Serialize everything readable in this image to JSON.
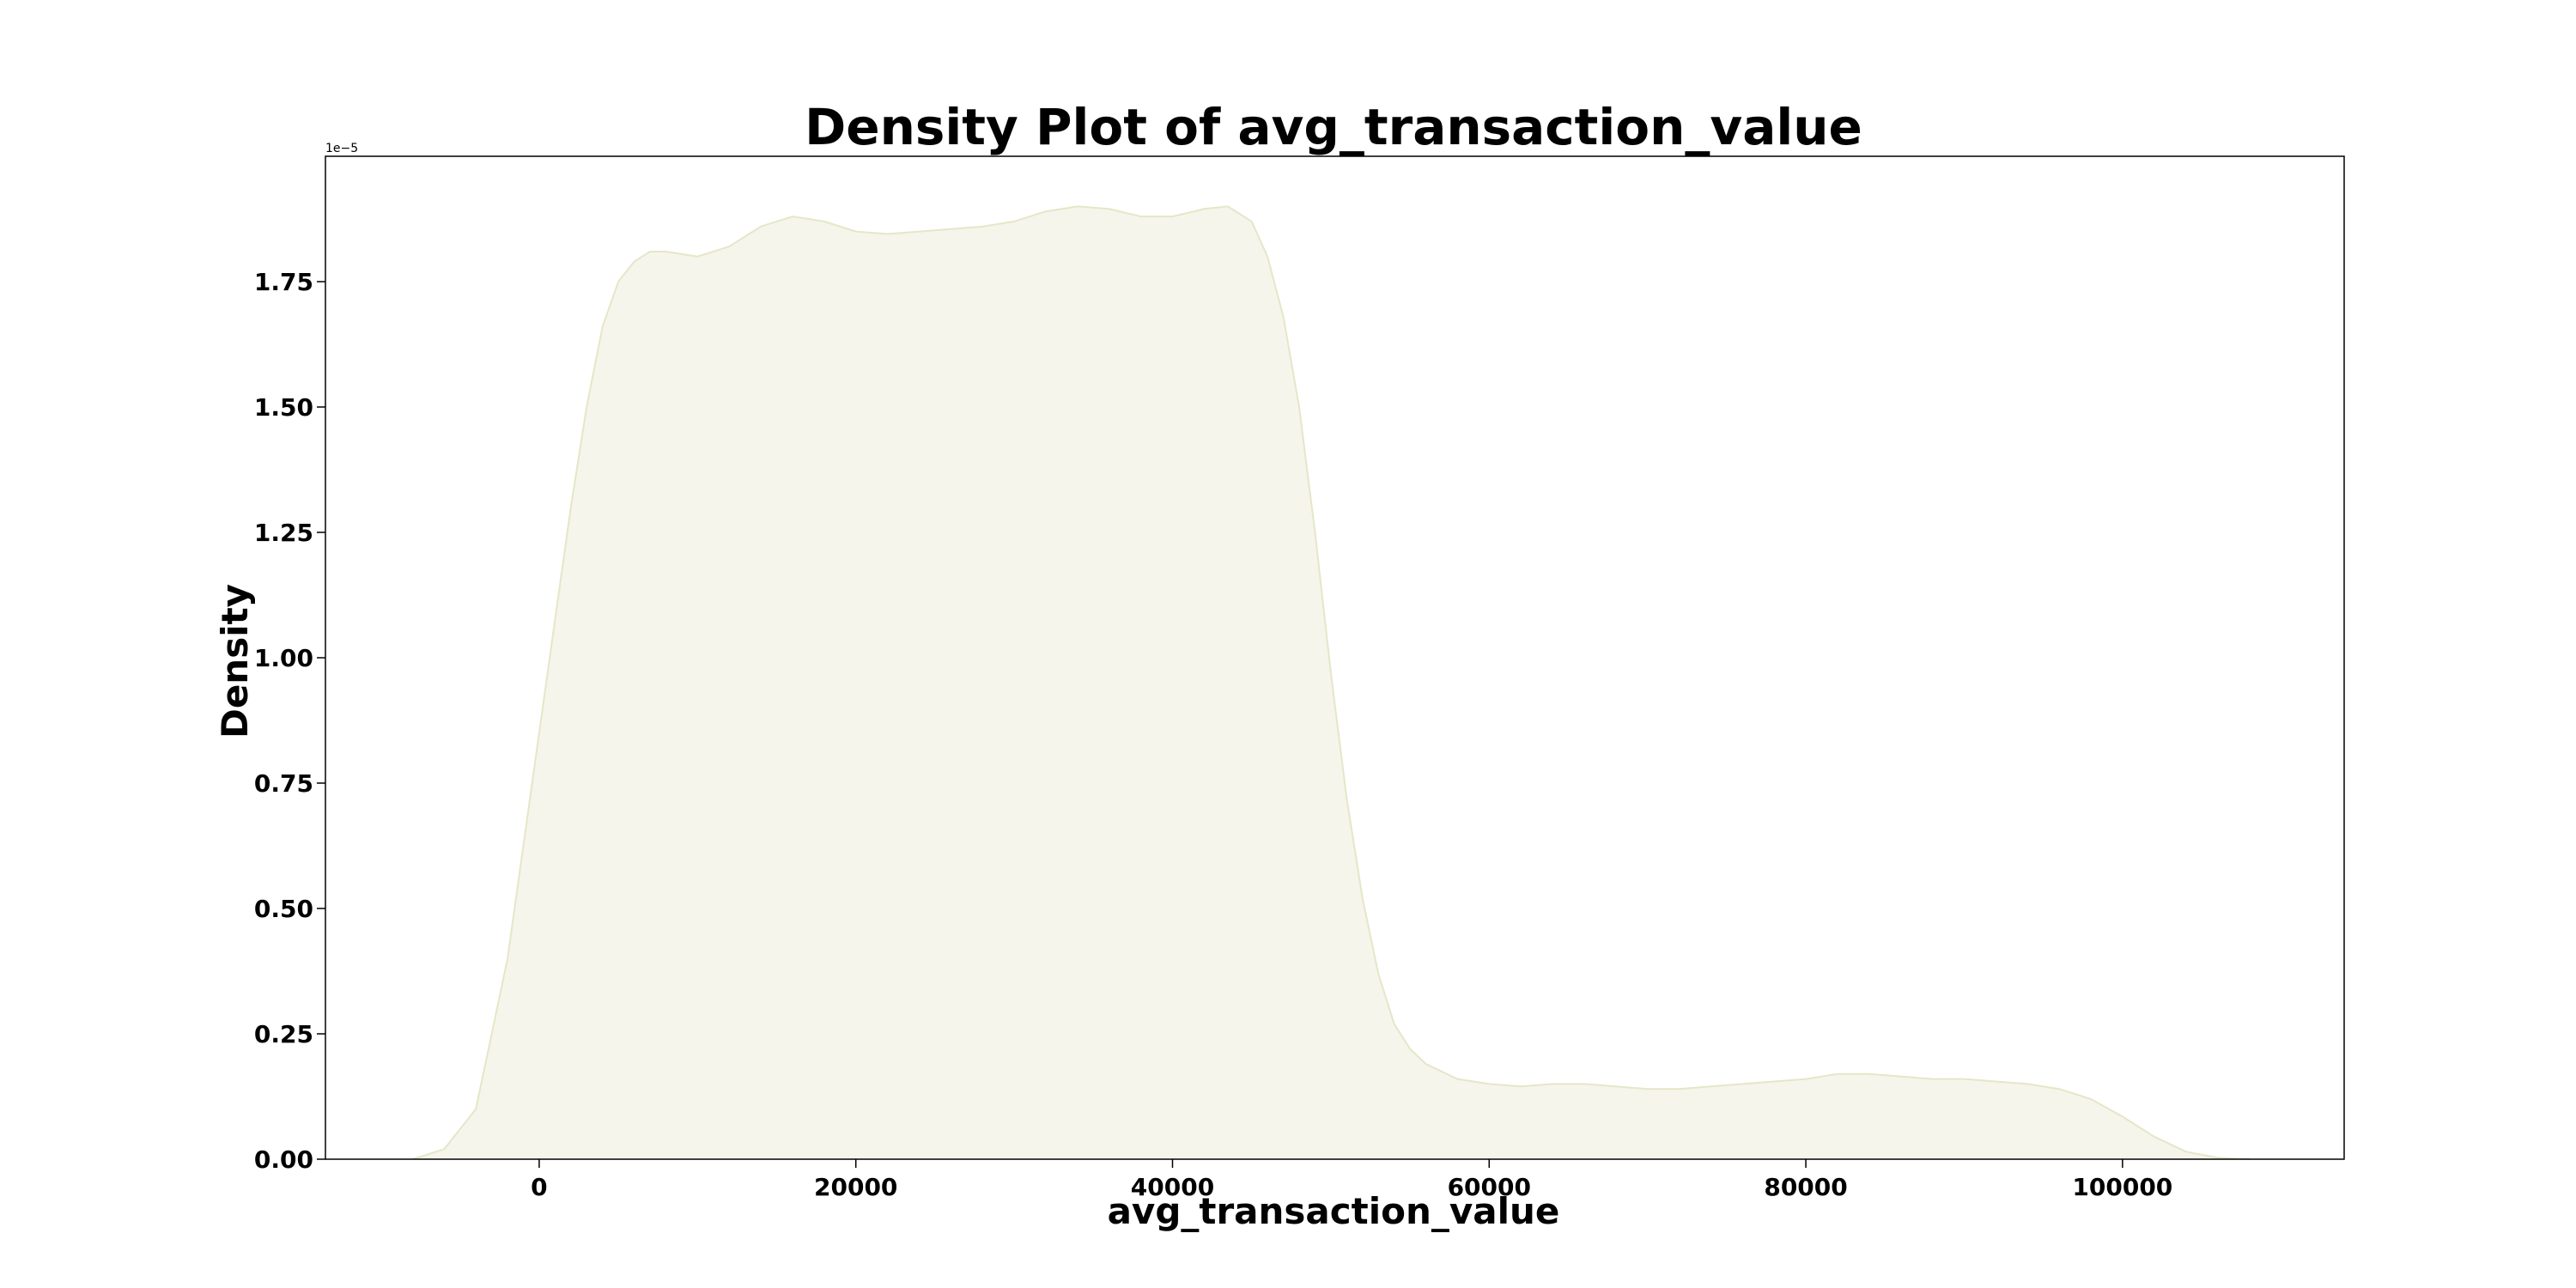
{
  "chart_data": {
    "type": "area",
    "title": "Density Plot of avg_transaction_value",
    "xlabel": "avg_transaction_value",
    "ylabel": "Density",
    "y_offset_label": "1e−5",
    "xlim": [
      -13500,
      114000
    ],
    "ylim": [
      0,
      2.0
    ],
    "y_scale_factor": 1e-05,
    "x_ticks": [
      0,
      20000,
      40000,
      60000,
      80000,
      100000
    ],
    "x_tick_labels": [
      "0",
      "20000",
      "40000",
      "60000",
      "80000",
      "100000"
    ],
    "y_ticks": [
      0.0,
      0.25,
      0.5,
      0.75,
      1.0,
      1.25,
      1.5,
      1.75
    ],
    "y_tick_labels": [
      "0.00",
      "0.25",
      "0.50",
      "0.75",
      "1.00",
      "1.25",
      "1.50",
      "1.75"
    ],
    "grid": false,
    "fill_color": "#f5f5ec",
    "line_color": "#e6e6c8",
    "series": [
      {
        "x": [
          -8000,
          -6000,
          -4000,
          -2000,
          0,
          2000,
          3000,
          4000,
          5000,
          6000,
          7000,
          8000,
          10000,
          12000,
          14000,
          16000,
          18000,
          20000,
          22000,
          24000,
          26000,
          28000,
          30000,
          32000,
          34000,
          36000,
          38000,
          40000,
          42000,
          43500,
          45000,
          46000,
          47000,
          48000,
          49000,
          50000,
          51000,
          52000,
          53000,
          54000,
          55000,
          56000,
          58000,
          60000,
          62000,
          64000,
          66000,
          68000,
          70000,
          72000,
          74000,
          76000,
          78000,
          80000,
          82000,
          84000,
          86000,
          88000,
          90000,
          92000,
          94000,
          96000,
          98000,
          100000,
          102000,
          104000,
          106000,
          108000
        ],
        "y": [
          0.0,
          0.02,
          0.1,
          0.4,
          0.85,
          1.3,
          1.5,
          1.66,
          1.75,
          1.79,
          1.81,
          1.81,
          1.8,
          1.82,
          1.86,
          1.88,
          1.87,
          1.85,
          1.845,
          1.85,
          1.855,
          1.86,
          1.87,
          1.89,
          1.9,
          1.895,
          1.88,
          1.88,
          1.895,
          1.9,
          1.87,
          1.8,
          1.68,
          1.5,
          1.25,
          0.97,
          0.72,
          0.52,
          0.37,
          0.27,
          0.22,
          0.19,
          0.16,
          0.15,
          0.145,
          0.15,
          0.15,
          0.145,
          0.14,
          0.14,
          0.145,
          0.15,
          0.155,
          0.16,
          0.17,
          0.17,
          0.165,
          0.16,
          0.16,
          0.155,
          0.15,
          0.14,
          0.12,
          0.085,
          0.045,
          0.015,
          0.003,
          0.0
        ]
      }
    ]
  }
}
